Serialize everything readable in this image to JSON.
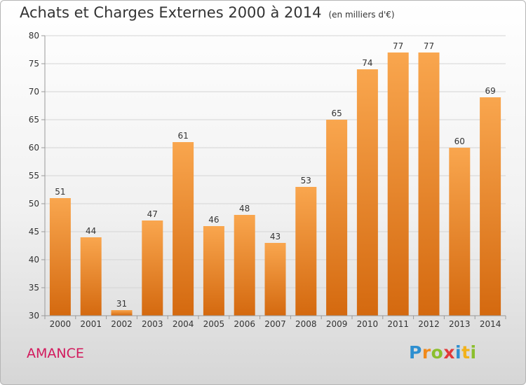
{
  "chart_data": {
    "type": "bar",
    "title": "Achats et Charges Externes 2000 à 2014",
    "subtitle": "(en milliers d'€)",
    "categories": [
      "2000",
      "2001",
      "2002",
      "2003",
      "2004",
      "2005",
      "2006",
      "2007",
      "2008",
      "2009",
      "2010",
      "2011",
      "2012",
      "2013",
      "2014"
    ],
    "values": [
      51,
      44,
      31,
      47,
      61,
      46,
      48,
      43,
      53,
      65,
      74,
      77,
      77,
      60,
      69
    ],
    "ylim": [
      30,
      80
    ],
    "yticks": [
      30,
      35,
      40,
      45,
      50,
      55,
      60,
      65,
      70,
      75,
      80
    ],
    "grid": true,
    "bar_color": "#f0882a",
    "bar_color_top": "#f9a64e",
    "bar_color_bottom": "#d4690f"
  },
  "place_name": "AMANCE",
  "brand": {
    "letters": [
      {
        "ch": "P",
        "color": "#2e8fd0"
      },
      {
        "ch": "r",
        "color": "#f08a1c"
      },
      {
        "ch": "o",
        "color": "#8bbf2d"
      },
      {
        "ch": "x",
        "color": "#e23a3a"
      },
      {
        "ch": "i",
        "color": "#2e8fd0"
      },
      {
        "ch": "t",
        "color": "#f2b21b"
      },
      {
        "ch": "i",
        "color": "#8bbf2d"
      }
    ]
  }
}
